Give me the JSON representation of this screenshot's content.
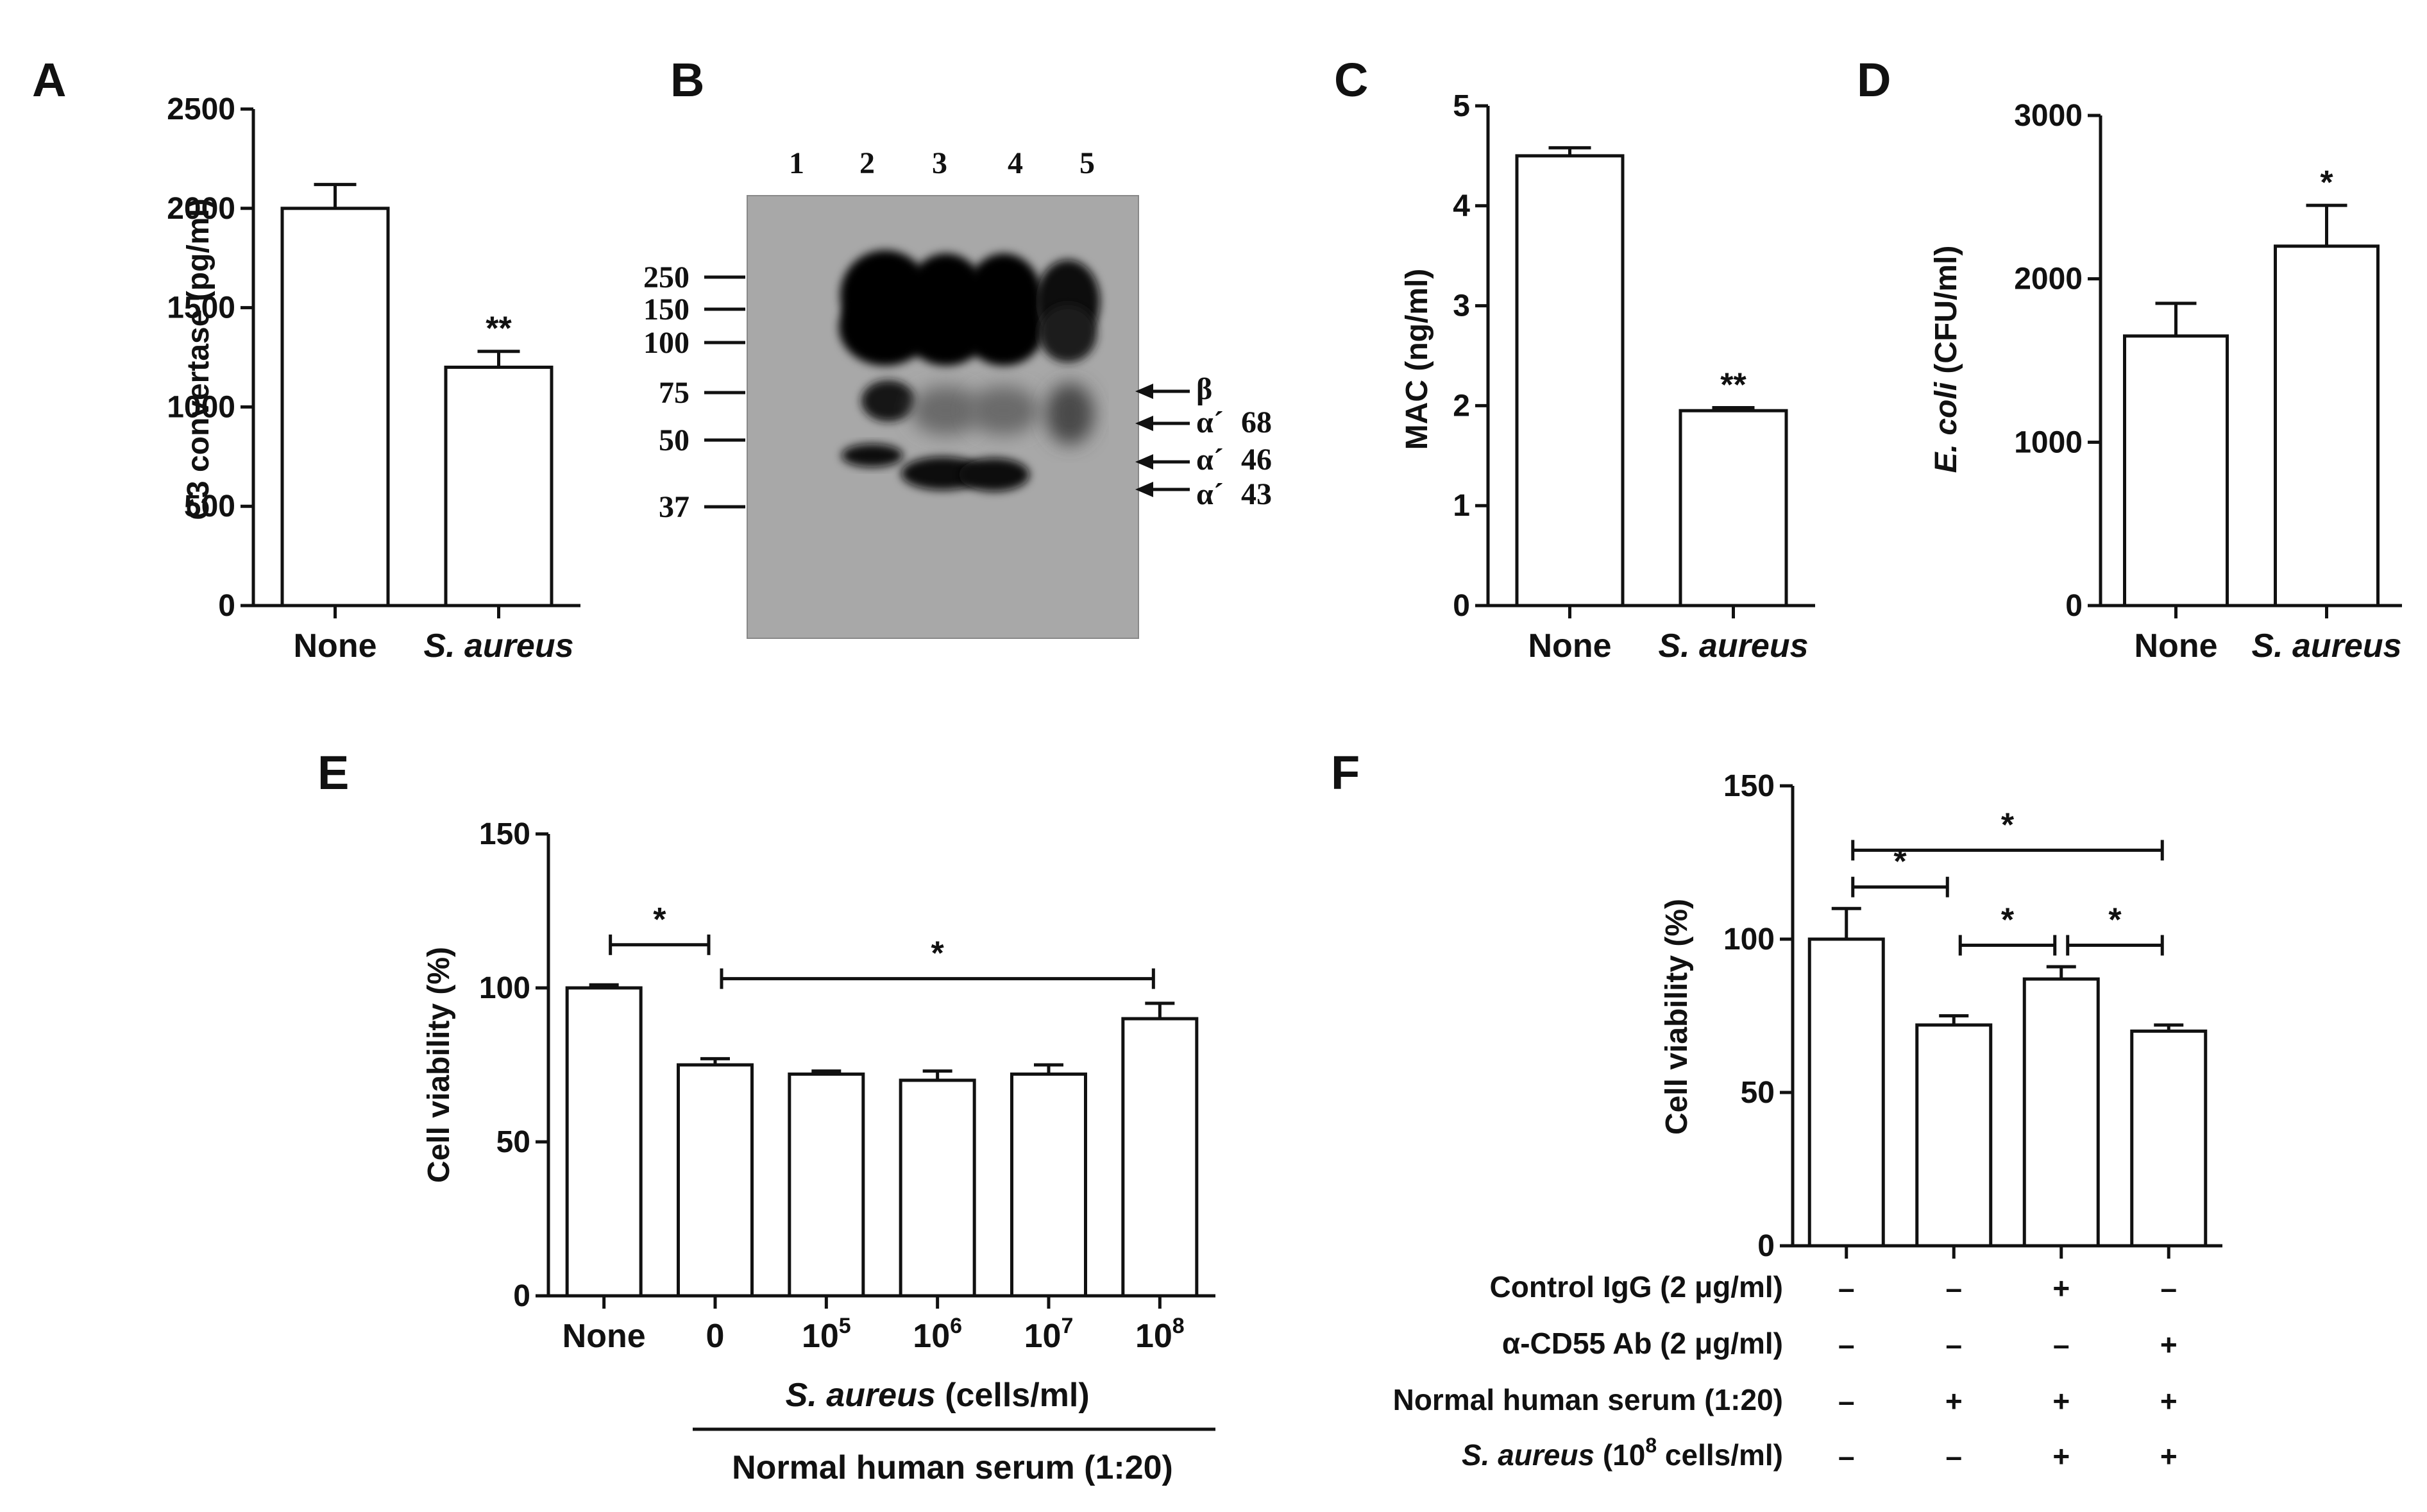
{
  "figure": {
    "panel_letters": [
      "A",
      "B",
      "C",
      "D",
      "E",
      "F"
    ]
  },
  "chart_data": [
    {
      "panel": "A",
      "type": "bar",
      "categories": [
        "None",
        "S. aureus"
      ],
      "italic_categories": [
        false,
        true
      ],
      "values": [
        2000,
        1200
      ],
      "errors": [
        120,
        80
      ],
      "significance": [
        "",
        "**"
      ],
      "ylabel": "C3 convertase (pg/ml)",
      "ylim": [
        0,
        2500
      ],
      "yticks": [
        0,
        500,
        1000,
        1500,
        2000,
        2500
      ]
    },
    {
      "panel": "C",
      "type": "bar",
      "categories": [
        "None",
        "S. aureus"
      ],
      "italic_categories": [
        false,
        true
      ],
      "values": [
        4.5,
        1.95
      ],
      "errors": [
        0.08,
        0.03
      ],
      "significance": [
        "",
        "**"
      ],
      "ylabel": "MAC (ng/ml)",
      "ylim": [
        0,
        5
      ],
      "yticks": [
        0,
        1,
        2,
        3,
        4,
        5
      ]
    },
    {
      "panel": "D",
      "type": "bar",
      "categories": [
        "None",
        "S. aureus"
      ],
      "italic_categories": [
        false,
        true
      ],
      "values": [
        1650,
        2200
      ],
      "errors": [
        200,
        250
      ],
      "significance": [
        "",
        "*"
      ],
      "ylabel_italic": "E. coli",
      "ylabel_rest": " (CFU/ml)",
      "ylim": [
        0,
        3000
      ],
      "yticks": [
        0,
        1000,
        2000,
        3000
      ]
    },
    {
      "panel": "E",
      "type": "bar",
      "categories": [
        "None",
        "0",
        "10",
        "10",
        "10",
        "10"
      ],
      "category_superscripts": [
        "",
        "",
        "5",
        "6",
        "7",
        "8"
      ],
      "values": [
        100,
        75,
        72,
        70,
        72,
        90
      ],
      "errors": [
        1,
        2,
        1,
        3,
        3,
        5
      ],
      "brackets": [
        {
          "from": 0,
          "to": 1,
          "label": "*"
        },
        {
          "from": 1,
          "to": 5,
          "label": "*"
        }
      ],
      "ylabel": "Cell viability (%)",
      "ylim": [
        0,
        150
      ],
      "yticks": [
        0,
        50,
        100,
        150
      ],
      "xlabel_italic": "S. aureus",
      "xlabel_rest": " (cells/ml)",
      "group_label": "Normal human serum (1:20)"
    },
    {
      "panel": "F",
      "type": "bar",
      "categories": [
        "",
        "",
        "",
        ""
      ],
      "values": [
        100,
        72,
        87,
        70
      ],
      "errors": [
        10,
        3,
        4,
        2
      ],
      "brackets": [
        {
          "from": 0,
          "to": 3,
          "label": "*"
        },
        {
          "from": 0,
          "to": 1,
          "label": "*"
        },
        {
          "from": 1,
          "to": 2,
          "label": "*"
        },
        {
          "from": 2,
          "to": 3,
          "label": "*"
        }
      ],
      "ylabel": "Cell viability (%)",
      "ylim": [
        0,
        150
      ],
      "yticks": [
        0,
        50,
        100,
        150
      ],
      "condition_rows": [
        {
          "label": "Control IgG (2 μg/ml)",
          "italic_prefix": "",
          "values": [
            "–",
            "–",
            "+",
            "–"
          ]
        },
        {
          "label": "α-CD55 Ab (2 μg/ml)",
          "italic_prefix": "",
          "values": [
            "–",
            "–",
            "–",
            "+"
          ]
        },
        {
          "label": "Normal human serum (1:20)",
          "italic_prefix": "",
          "values": [
            "–",
            "+",
            "+",
            "+"
          ]
        },
        {
          "label": " (10",
          "italic_prefix": "S. aureus",
          "sup": "8",
          "suffix": " cells/ml)",
          "values": [
            "–",
            "–",
            "+",
            "+"
          ]
        }
      ]
    }
  ],
  "western_blot": {
    "panel": "B",
    "lanes": [
      "1",
      "2",
      "3",
      "4",
      "5"
    ],
    "markers": [
      "250",
      "150",
      "100",
      "75",
      "50",
      "37"
    ],
    "bands": [
      {
        "symbol": "β",
        "size": ""
      },
      {
        "symbol": "α´",
        "size": "68"
      },
      {
        "symbol": "α´",
        "size": "46"
      },
      {
        "symbol": "α´",
        "size": "43"
      }
    ],
    "background_color": "#a8a8a8",
    "band_color": "#050505"
  }
}
